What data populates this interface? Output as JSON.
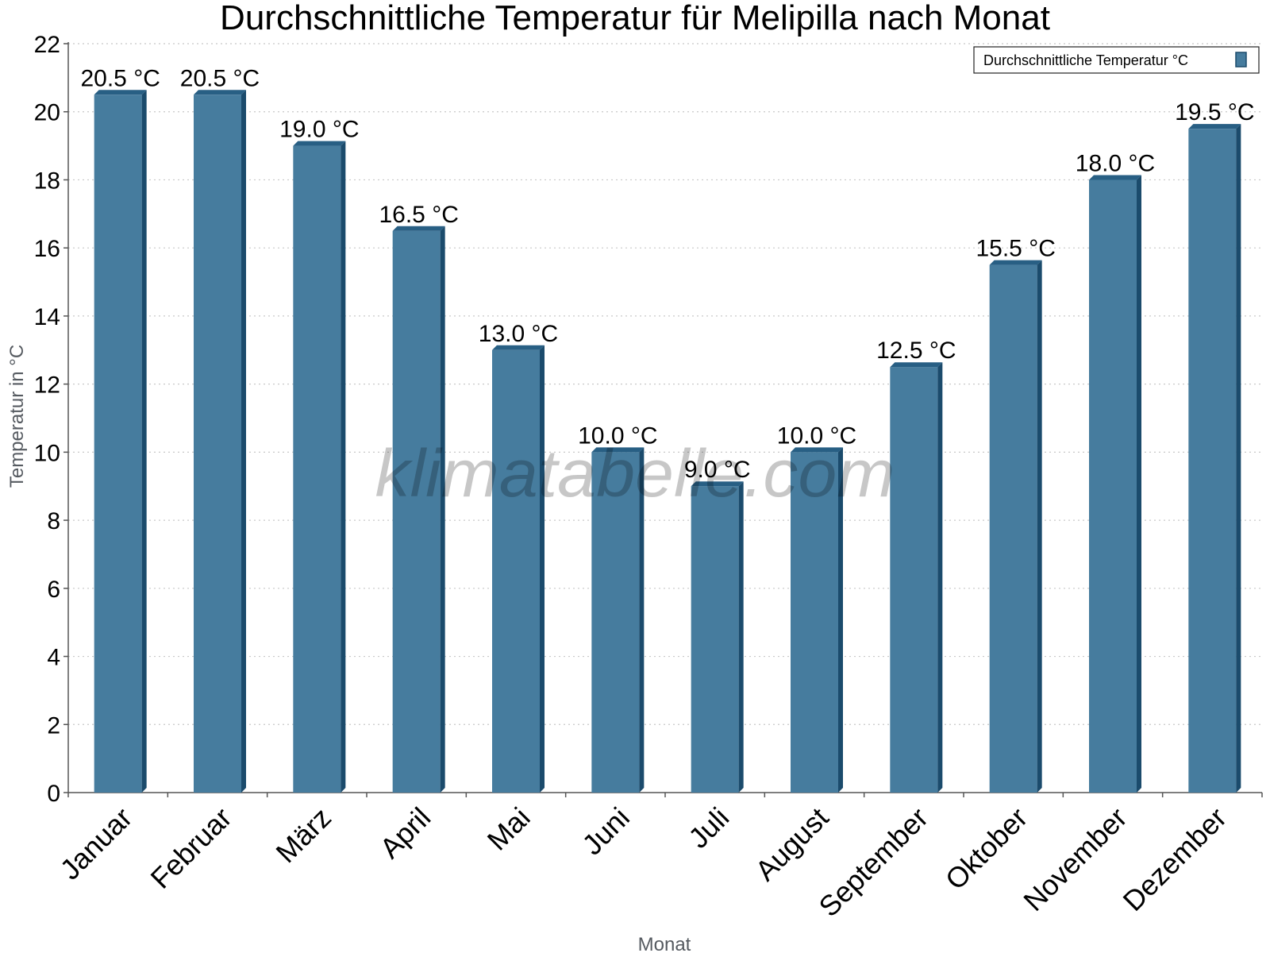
{
  "chart_data": {
    "type": "bar",
    "title": "Durchschnittliche Temperatur für Melipilla nach Monat",
    "xlabel": "Monat",
    "ylabel": "Temperatur in °C",
    "categories": [
      "Januar",
      "Februar",
      "März",
      "April",
      "Mai",
      "Juni",
      "Juli",
      "August",
      "September",
      "Oktober",
      "November",
      "Dezember"
    ],
    "series": [
      {
        "name": "Durchschnittliche Temperatur °C",
        "values": [
          20.5,
          20.5,
          19.0,
          16.5,
          13.0,
          10.0,
          9.0,
          10.0,
          12.5,
          15.5,
          18.0,
          19.5
        ],
        "data_labels": [
          "20.5 °C",
          "20.5 °C",
          "19.0 °C",
          "16.5 °C",
          "13.0 °C",
          "10.0 °C",
          "9.0 °C",
          "10.0 °C",
          "12.5 °C",
          "15.5 °C",
          "18.0 °C",
          "19.5 °C"
        ]
      }
    ],
    "ylim": [
      0,
      22
    ],
    "yticks": [
      0,
      2,
      4,
      6,
      8,
      10,
      12,
      14,
      16,
      18,
      20,
      22
    ],
    "grid": true,
    "legend": "top-right",
    "colors": {
      "bar_front": "#467c9e",
      "bar_side": "#1b4b6c",
      "bar_top": "#285f84",
      "grid": "#c8c8c8",
      "axis": "#555555"
    }
  },
  "watermark": "klimatabelle.com"
}
